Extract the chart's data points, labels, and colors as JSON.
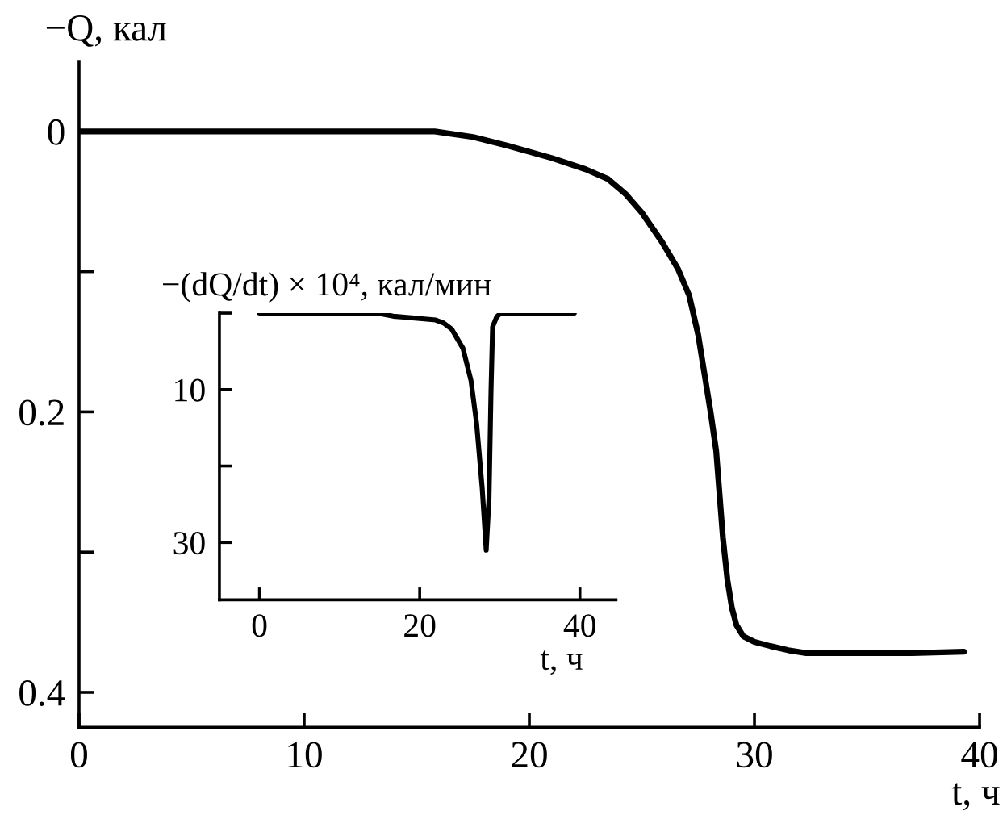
{
  "chart_data": [
    {
      "type": "line",
      "xlabel": "t, ч",
      "ylabel": "−Q, кал",
      "color": "#000000",
      "x": [
        0,
        5,
        10,
        15.8,
        17.5,
        19,
        21,
        22.5,
        23.5,
        24.3,
        25,
        25.9,
        26.6,
        27.1,
        27.5,
        27.8,
        28.05,
        28.3,
        28.6,
        28.8,
        29,
        29.2,
        29.5,
        30,
        30.7,
        31.5,
        32.3,
        34.7,
        37,
        39.3
      ],
      "values": [
        0,
        0,
        0,
        0,
        0.004,
        0.01,
        0.019,
        0.027,
        0.034,
        0.045,
        0.058,
        0.079,
        0.098,
        0.117,
        0.145,
        0.175,
        0.2,
        0.228,
        0.29,
        0.32,
        0.34,
        0.352,
        0.36,
        0.364,
        0.367,
        0.37,
        0.372,
        0.372,
        0.372,
        0.371
      ],
      "xlim": [
        0,
        40
      ],
      "ylim": [
        0.425,
        -0.05
      ],
      "xticks": [
        0,
        10,
        20,
        30,
        40
      ],
      "yticks": [
        0,
        {
          "value": 0.1,
          "label": null
        },
        0.2,
        {
          "value": 0.3,
          "label": null
        },
        0.4
      ]
    },
    {
      "type": "line",
      "xlabel": "t, ч",
      "ylabel": "−(dQ/dt) × 10⁴, кал/мин",
      "color": "#000000",
      "x": [
        0,
        10,
        14.7,
        16.7,
        20,
        22,
        23,
        24,
        25.4,
        26.4,
        27.1,
        27.8,
        28.3,
        28.65,
        28.9,
        29.1,
        29.6,
        30.1,
        39.3
      ],
      "values": [
        0,
        0,
        0,
        0.4,
        0.7,
        0.9,
        1.3,
        2.1,
        4.6,
        8.8,
        14.4,
        22.9,
        31,
        24.3,
        10.2,
        1.8,
        0.5,
        0,
        0
      ],
      "xlim": [
        -5,
        44.5
      ],
      "ylim": [
        37.5,
        0
      ],
      "xticks": [
        0,
        20,
        40
      ],
      "yticks": [
        {
          "value": 0,
          "label": null
        },
        10,
        {
          "value": 20,
          "label": null
        },
        30
      ]
    }
  ]
}
